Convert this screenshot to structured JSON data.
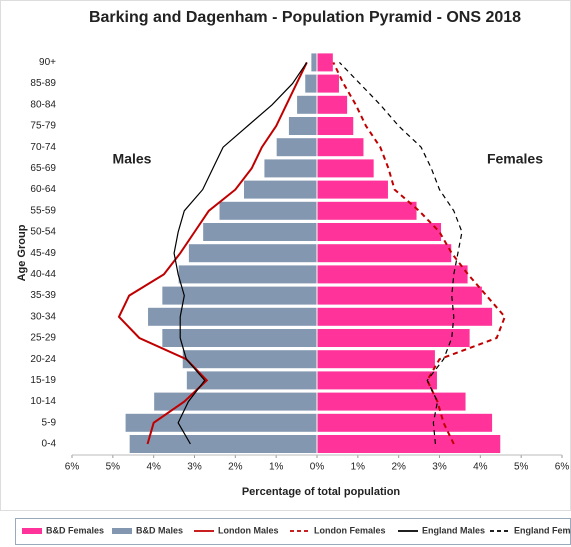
{
  "chart_data": {
    "type": "pyramid",
    "title": "Barking and Dagenham - Population Pyramid - ONS 2018",
    "xlabel": "Percentage of total population",
    "ylabel": "Age Group",
    "annotations": [
      "Males",
      "Females"
    ],
    "categories": [
      "0-4",
      "5-9",
      "10-14",
      "15-19",
      "20-24",
      "25-29",
      "30-34",
      "35-39",
      "40-44",
      "45-49",
      "50-54",
      "55-59",
      "60-64",
      "65-69",
      "70-74",
      "75-79",
      "80-84",
      "85-89",
      "90+"
    ],
    "xlim": [
      -6,
      6
    ],
    "xticks": [
      {
        "value": -6,
        "label": "6%"
      },
      {
        "value": -5,
        "label": "5%"
      },
      {
        "value": -4,
        "label": "4%"
      },
      {
        "value": -3,
        "label": "3%"
      },
      {
        "value": -2,
        "label": "2%"
      },
      {
        "value": -1,
        "label": "1%"
      },
      {
        "value": 0,
        "label": "0%"
      },
      {
        "value": 1,
        "label": "1%"
      },
      {
        "value": 2,
        "label": "2%"
      },
      {
        "value": 3,
        "label": "3%"
      },
      {
        "value": 4,
        "label": "4%"
      },
      {
        "value": 5,
        "label": "5%"
      },
      {
        "value": 6,
        "label": "6%"
      }
    ],
    "legend": "bottom",
    "series": [
      {
        "name": "B&D Females",
        "kind": "bar",
        "color": "#ff3399",
        "values": [
          4.5,
          4.3,
          3.65,
          2.95,
          2.9,
          3.75,
          4.3,
          4.05,
          3.7,
          3.3,
          3.05,
          2.45,
          1.75,
          1.4,
          1.15,
          0.9,
          0.75,
          0.55,
          0.4
        ]
      },
      {
        "name": "B&D Males",
        "kind": "bar",
        "color": "#8497b0",
        "values": [
          -4.6,
          -4.7,
          -4.0,
          -3.2,
          -3.3,
          -3.8,
          -4.15,
          -3.8,
          -3.4,
          -3.15,
          -2.8,
          -2.4,
          -1.8,
          -1.3,
          -1.0,
          -0.7,
          -0.5,
          -0.3,
          -0.15
        ]
      },
      {
        "name": "London Males",
        "kind": "line",
        "dashed": false,
        "color": "#c00000",
        "values": [
          -4.15,
          -4.0,
          -3.25,
          -2.7,
          -3.2,
          -4.35,
          -4.85,
          -4.6,
          -3.75,
          -3.35,
          -3.0,
          -2.65,
          -2.0,
          -1.6,
          -1.35,
          -1.0,
          -0.75,
          -0.5,
          -0.25
        ]
      },
      {
        "name": "London Females",
        "kind": "line",
        "dashed": true,
        "color": "#c00000",
        "values": [
          3.35,
          3.1,
          2.95,
          2.7,
          3.0,
          4.4,
          4.6,
          4.15,
          3.7,
          3.3,
          3.0,
          2.5,
          1.9,
          1.75,
          1.55,
          1.2,
          0.95,
          0.65,
          0.4
        ]
      },
      {
        "name": "England Males",
        "kind": "line",
        "dashed": false,
        "color": "#000000",
        "values": [
          -3.1,
          -3.4,
          -3.15,
          -2.75,
          -3.2,
          -3.35,
          -3.35,
          -3.25,
          -3.4,
          -3.5,
          -3.4,
          -3.25,
          -2.8,
          -2.55,
          -2.3,
          -1.7,
          -1.1,
          -0.6,
          -0.25
        ]
      },
      {
        "name": "England Females",
        "kind": "line",
        "dashed": true,
        "color": "#000000",
        "values": [
          2.9,
          2.85,
          2.95,
          2.7,
          3.1,
          3.3,
          3.35,
          3.3,
          3.35,
          3.45,
          3.55,
          3.35,
          3.0,
          2.8,
          2.55,
          2.0,
          1.55,
          1.05,
          0.55
        ]
      }
    ]
  }
}
